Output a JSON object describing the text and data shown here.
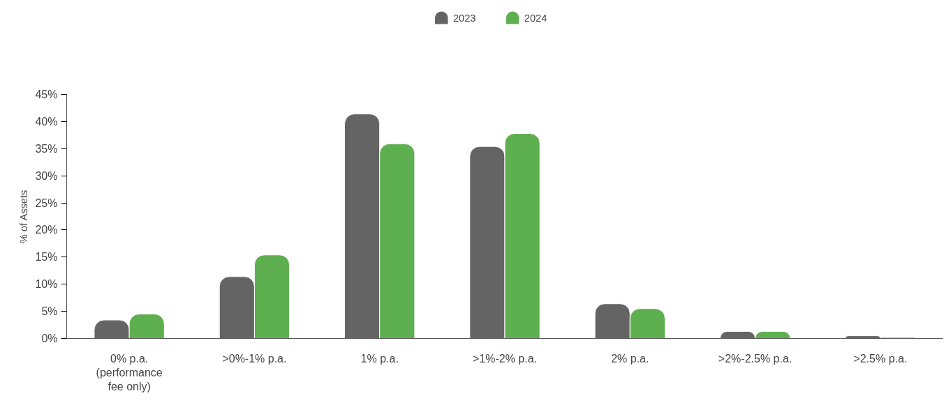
{
  "chart_data": {
    "type": "bar",
    "ylabel": "% of Assets",
    "categories": [
      "0% p.a.\n(performance\nfee only)",
      ">0%-1% p.a.",
      "1% p.a.",
      ">1%-2% p.a.",
      "2% p.a.",
      ">2%-2.5% p.a.",
      ">2.5% p.a."
    ],
    "series": [
      {
        "name": "2023",
        "color": "#646464",
        "values": [
          3.4,
          11.4,
          41.4,
          35.4,
          6.4,
          1.3,
          0.5
        ]
      },
      {
        "name": "2024",
        "color": "#5eaf4f",
        "values": [
          4.5,
          15.4,
          35.9,
          37.8,
          5.5,
          1.3,
          0.2
        ]
      }
    ],
    "ylim": [
      0,
      45
    ],
    "yticks": [
      {
        "value": 0,
        "label": "0%"
      },
      {
        "value": 5,
        "label": "5%"
      },
      {
        "value": 10,
        "label": "10%"
      },
      {
        "value": 15,
        "label": "15%"
      },
      {
        "value": 20,
        "label": "20%"
      },
      {
        "value": 25,
        "label": "25%"
      },
      {
        "value": 30,
        "label": "30%"
      },
      {
        "value": 35,
        "label": "35%"
      },
      {
        "value": 40,
        "label": "40%"
      },
      {
        "value": 45,
        "label": "45%"
      }
    ],
    "grid": false,
    "legend": "top"
  }
}
